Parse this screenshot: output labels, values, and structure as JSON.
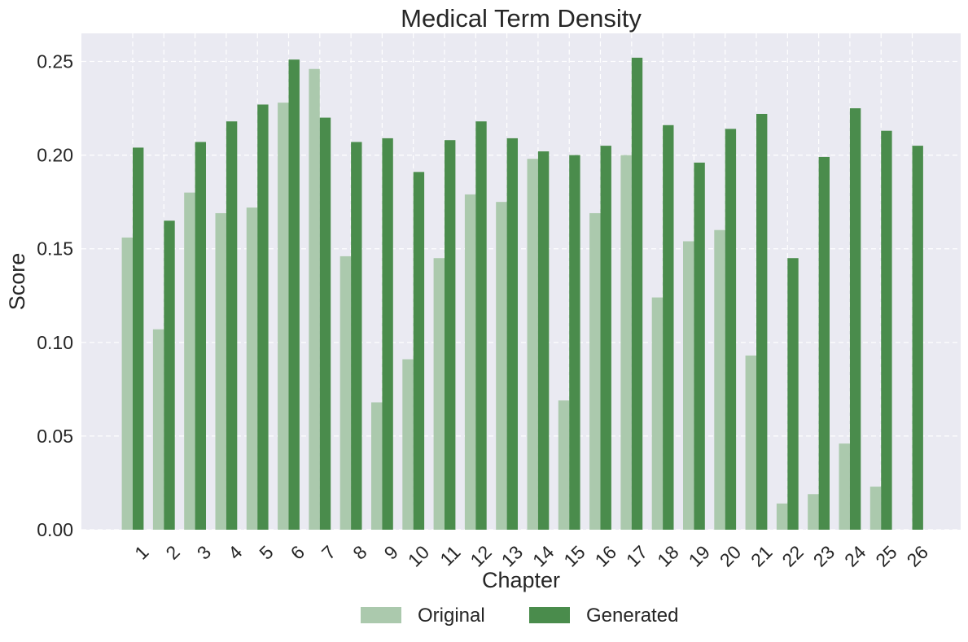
{
  "chart_data": {
    "type": "bar",
    "title": "Medical Term Density",
    "xlabel": "Chapter",
    "ylabel": "Score",
    "ylim": [
      0,
      0.265
    ],
    "yticks": [
      "0.00",
      "0.05",
      "0.10",
      "0.15",
      "0.20",
      "0.25"
    ],
    "categories": [
      "1",
      "2",
      "3",
      "4",
      "5",
      "6",
      "7",
      "8",
      "9",
      "10",
      "11",
      "12",
      "13",
      "14",
      "15",
      "16",
      "17",
      "18",
      "19",
      "20",
      "21",
      "22",
      "23",
      "24",
      "25",
      "26"
    ],
    "series": [
      {
        "name": "Original",
        "color": "#abc9ad",
        "values": [
          0.156,
          0.107,
          0.18,
          0.169,
          0.172,
          0.228,
          0.246,
          0.146,
          0.068,
          0.091,
          0.145,
          0.179,
          0.175,
          0.198,
          0.069,
          0.169,
          0.2,
          0.124,
          0.154,
          0.16,
          0.093,
          0.014,
          0.019,
          0.046,
          0.023,
          0.0
        ]
      },
      {
        "name": "Generated",
        "color": "#4a8c4c",
        "values": [
          0.204,
          0.165,
          0.207,
          0.218,
          0.227,
          0.251,
          0.22,
          0.207,
          0.209,
          0.191,
          0.208,
          0.218,
          0.209,
          0.202,
          0.2,
          0.205,
          0.252,
          0.216,
          0.196,
          0.214,
          0.222,
          0.145,
          0.199,
          0.225,
          0.213,
          0.205
        ]
      }
    ],
    "grid": true,
    "legend_position": "bottom-center",
    "plot_background": "#eaeaf2"
  }
}
